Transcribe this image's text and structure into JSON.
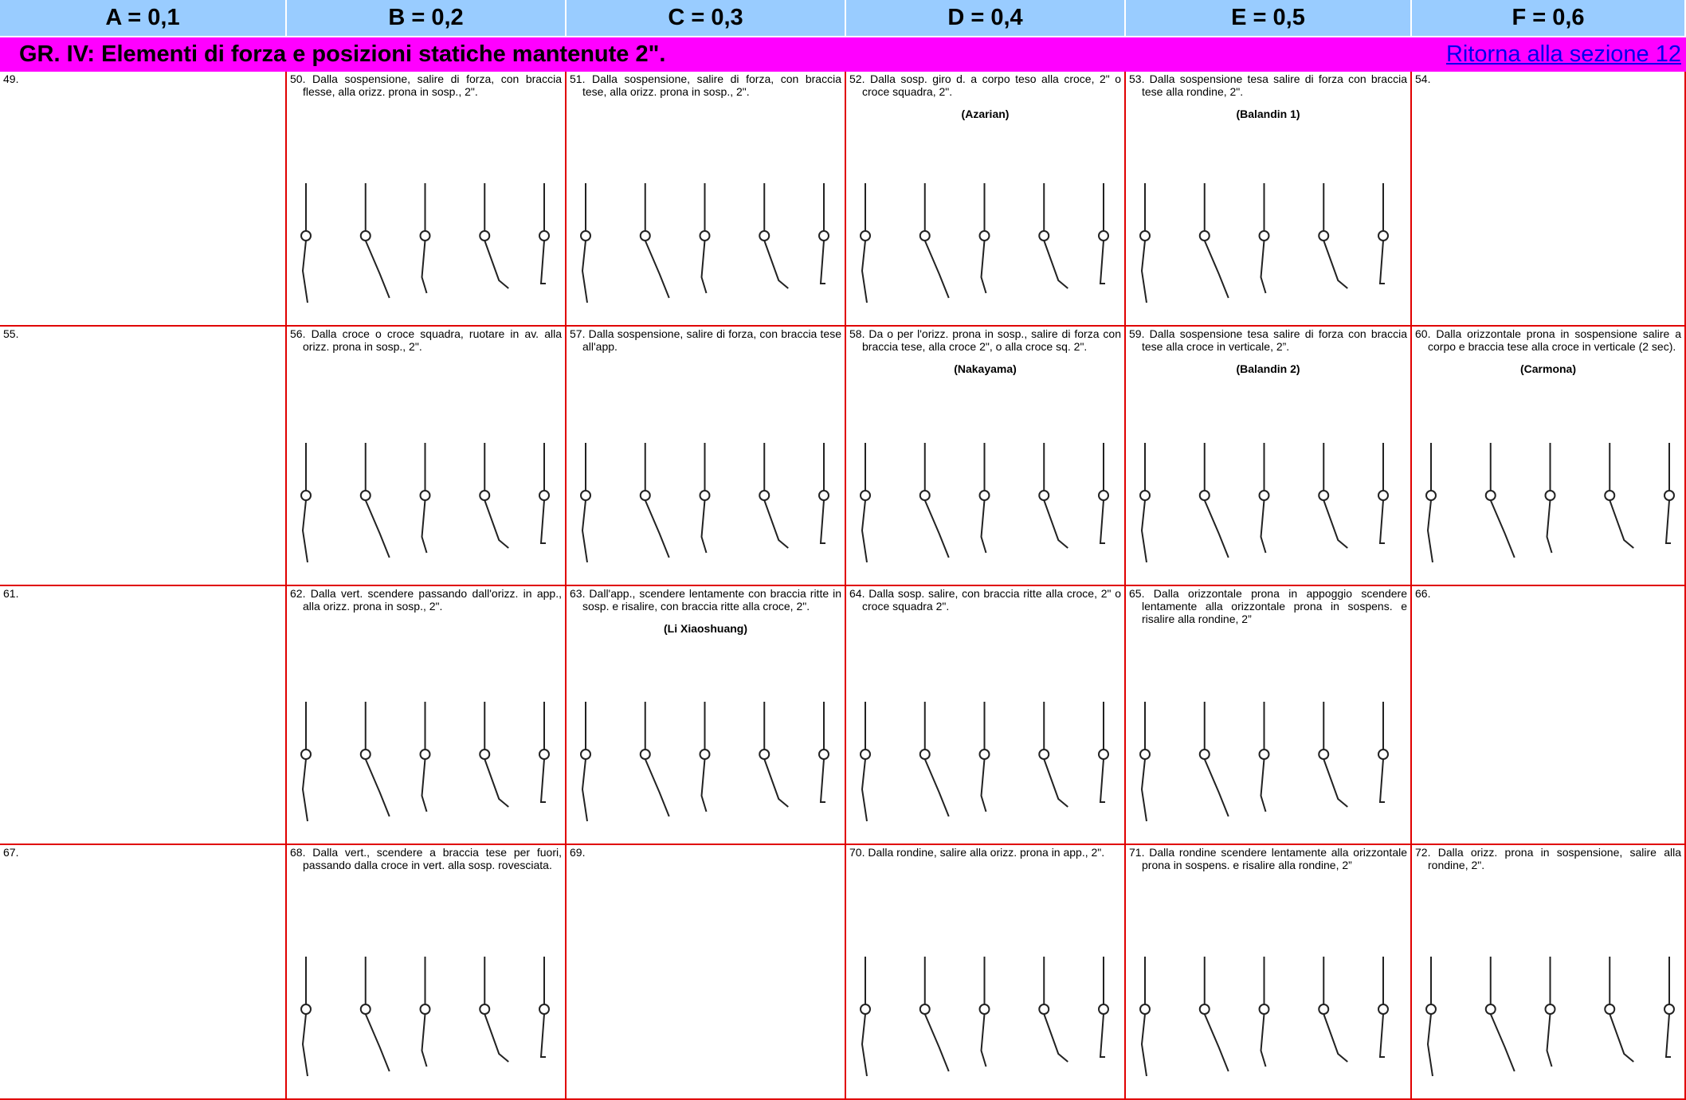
{
  "header": {
    "columns": [
      "A = 0,1",
      "B = 0,2",
      "C = 0,3",
      "D = 0,4",
      "E = 0,5",
      "F = 0,6"
    ]
  },
  "section": {
    "title": "GR. IV:   Elementi di forza e posizioni statiche mantenute 2\".",
    "link": "Ritorna alla sezione 12"
  },
  "rows": [
    [
      {
        "text": "49."
      },
      {
        "text": "50. Dalla sospensione, salire di forza, con braccia flesse, alla orizz. prona in sosp., 2\"."
      },
      {
        "text": "51. Dalla sospensione, salire di forza, con braccia tese, alla orizz. prona in sosp., 2\"."
      },
      {
        "text": "52. Dalla sosp. giro d. a corpo teso alla croce, 2\" o croce squadra, 2\".",
        "name": "(Azarian)"
      },
      {
        "text": "53. Dalla sospensione tesa salire di forza con braccia tese alla rondine, 2\".",
        "name": "(Balandin 1)"
      },
      {
        "text": "54."
      }
    ],
    [
      {
        "text": "55."
      },
      {
        "text": "56. Dalla croce o croce squadra, ruotare in av. alla orizz. prona in sosp., 2\"."
      },
      {
        "text": "57. Dalla sospensione, salire di forza, con braccia tese all'app."
      },
      {
        "text": "58. Da o per l'orizz. prona in sosp., salire di forza con braccia tese, alla croce 2\", o alla croce sq. 2\".",
        "name": "(Nakayama)"
      },
      {
        "text": "59. Dalla sospensione tesa salire di forza con braccia tese alla croce in verticale, 2”.",
        "name": "(Balandin 2)"
      },
      {
        "text": "60. Dalla orizzontale prona in sospensione salire a corpo e braccia tese alla croce in verticale (2 sec).",
        "name": "(Carmona)"
      }
    ],
    [
      {
        "text": "61."
      },
      {
        "text": "62. Dalla vert. scendere passando dall'orizz. in app., alla orizz. prona in sosp., 2\"."
      },
      {
        "text": "63. Dall'app., scendere lentamente con braccia ritte in sosp. e risalire, con braccia ritte alla croce, 2\".",
        "name": "(Li Xiaoshuang)"
      },
      {
        "text": "64. Dalla sosp. salire, con braccia ritte alla croce, 2\" o croce squadra 2\"."
      },
      {
        "text": "65. Dalla orizzontale prona in appoggio scendere lentamente alla orizzontale prona in sospens. e risalire alla rondine, 2”"
      },
      {
        "text": "66."
      }
    ],
    [
      {
        "text": "67."
      },
      {
        "text": "68. Dalla vert., scendere a braccia tese per fuori, passando dalla croce in vert. alla sosp. rovesciata."
      },
      {
        "text": "69."
      },
      {
        "text": "70. Dalla rondine, salire alla orizz. prona in app., 2\"."
      },
      {
        "text": "71. Dalla rondine scendere lentamente alla orizzontale prona in sospens. e risalire alla rondine, 2”"
      },
      {
        "text": "72. Dalla orizz. prona in sospensione, salire alla rondine, 2\"."
      }
    ]
  ]
}
